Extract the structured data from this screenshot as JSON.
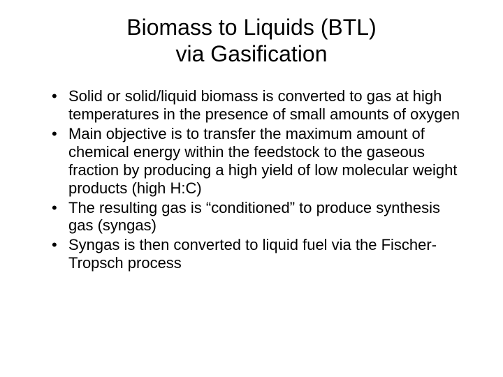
{
  "slide": {
    "title_line1": "Biomass to Liquids (BTL)",
    "title_line2": "via Gasification",
    "bullets": [
      "Solid or solid/liquid biomass is converted to gas at high temperatures in the presence of small amounts of oxygen",
      "Main objective is to transfer the maximum amount of chemical energy within the feedstock to the gaseous fraction by producing a high yield of low molecular weight products (high H:C)",
      "The resulting gas is “conditioned” to produce synthesis gas (syngas)",
      "Syngas is then converted to liquid fuel via the Fischer-Tropsch process"
    ],
    "background_color": "#ffffff",
    "text_color": "#000000",
    "title_fontsize": 32,
    "body_fontsize": 22
  }
}
